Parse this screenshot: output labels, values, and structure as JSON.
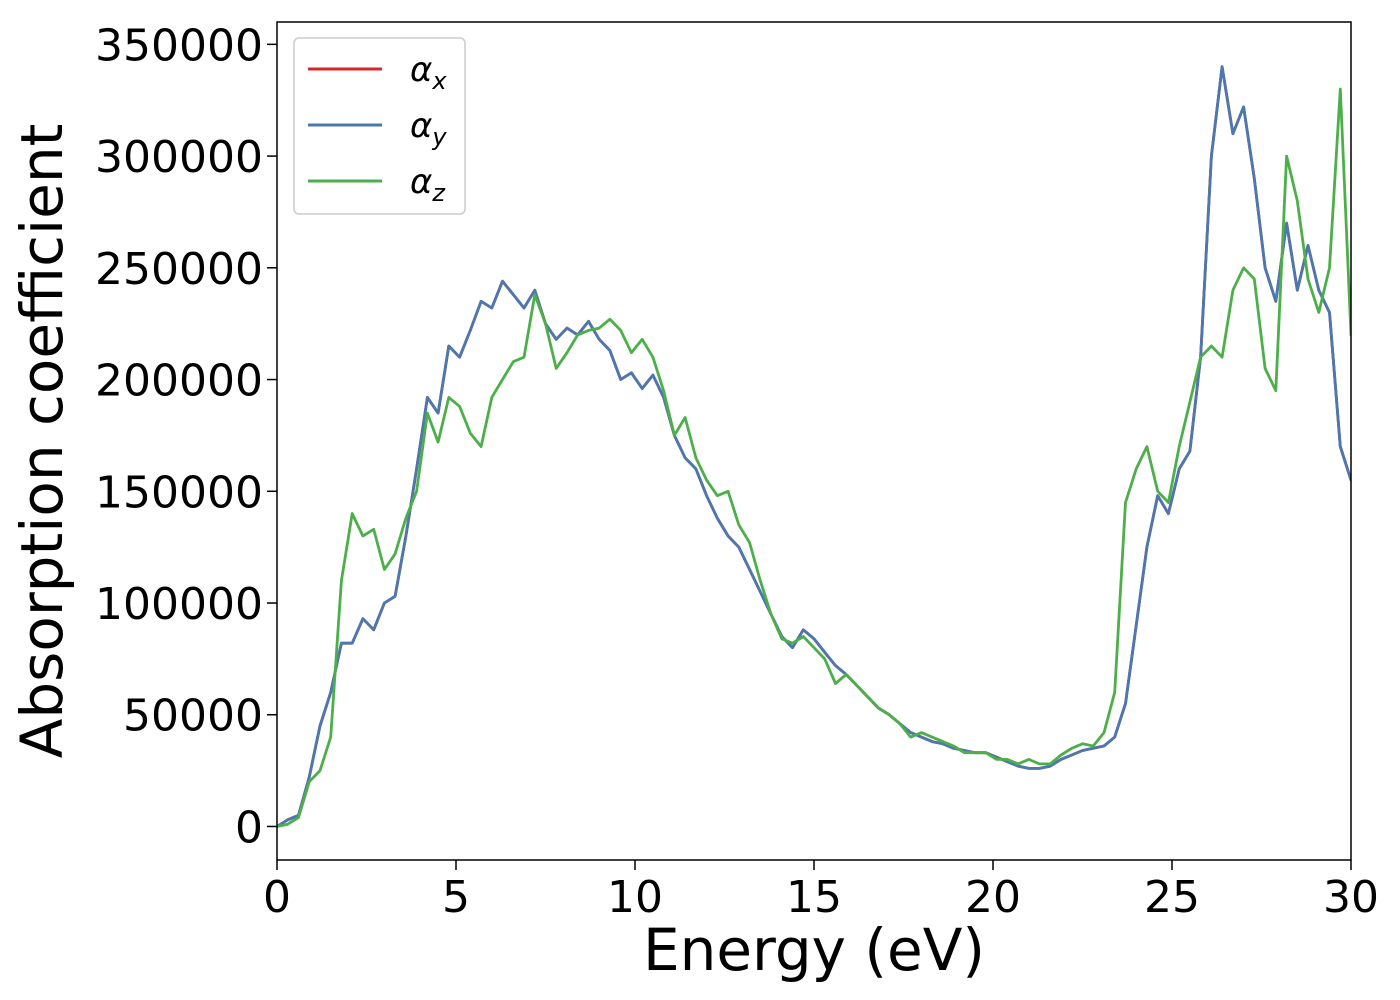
{
  "chart_data": {
    "type": "line",
    "title": "",
    "xlabel": "Energy (eV)",
    "ylabel": "Absorption coefficient",
    "xlim": [
      0,
      30
    ],
    "ylim": [
      -15000,
      360000
    ],
    "xticks": [
      0,
      5,
      10,
      15,
      20,
      25,
      30
    ],
    "yticks": [
      0,
      50000,
      100000,
      150000,
      200000,
      250000,
      300000,
      350000
    ],
    "grid": false,
    "legend_position": "top-left",
    "series": [
      {
        "name": "αx",
        "base": "α",
        "sub": "x",
        "color": "#d62728",
        "points": [
          [
            0,
            0
          ],
          [
            0.3,
            3000
          ],
          [
            0.6,
            5000
          ],
          [
            0.9,
            22000
          ],
          [
            1.2,
            45000
          ],
          [
            1.5,
            60000
          ],
          [
            1.8,
            82000
          ],
          [
            2.1,
            82000
          ],
          [
            2.4,
            93000
          ],
          [
            2.7,
            88000
          ],
          [
            3.0,
            100000
          ],
          [
            3.3,
            103000
          ],
          [
            3.6,
            130000
          ],
          [
            3.9,
            160000
          ],
          [
            4.2,
            192000
          ],
          [
            4.5,
            185000
          ],
          [
            4.8,
            215000
          ],
          [
            5.1,
            210000
          ],
          [
            5.4,
            222000
          ],
          [
            5.7,
            235000
          ],
          [
            6.0,
            232000
          ],
          [
            6.3,
            244000
          ],
          [
            6.6,
            238000
          ],
          [
            6.9,
            232000
          ],
          [
            7.2,
            240000
          ],
          [
            7.5,
            225000
          ],
          [
            7.8,
            218000
          ],
          [
            8.1,
            223000
          ],
          [
            8.4,
            220000
          ],
          [
            8.7,
            226000
          ],
          [
            9.0,
            218000
          ],
          [
            9.3,
            213000
          ],
          [
            9.6,
            200000
          ],
          [
            9.9,
            203000
          ],
          [
            10.2,
            196000
          ],
          [
            10.5,
            202000
          ],
          [
            10.8,
            192000
          ],
          [
            11.1,
            175000
          ],
          [
            11.4,
            165000
          ],
          [
            11.7,
            160000
          ],
          [
            12.0,
            148000
          ],
          [
            12.3,
            138000
          ],
          [
            12.6,
            130000
          ],
          [
            12.9,
            125000
          ],
          [
            13.2,
            115000
          ],
          [
            13.5,
            105000
          ],
          [
            13.8,
            95000
          ],
          [
            14.1,
            85000
          ],
          [
            14.4,
            80000
          ],
          [
            14.7,
            88000
          ],
          [
            15.0,
            84000
          ],
          [
            15.3,
            78000
          ],
          [
            15.6,
            72000
          ],
          [
            15.9,
            68000
          ],
          [
            16.2,
            63000
          ],
          [
            16.5,
            58000
          ],
          [
            16.8,
            53000
          ],
          [
            17.1,
            50000
          ],
          [
            17.4,
            46000
          ],
          [
            17.7,
            42000
          ],
          [
            18.0,
            40000
          ],
          [
            18.3,
            38000
          ],
          [
            18.6,
            37000
          ],
          [
            18.9,
            35000
          ],
          [
            19.2,
            34000
          ],
          [
            19.5,
            33000
          ],
          [
            19.8,
            33000
          ],
          [
            20.1,
            31000
          ],
          [
            20.4,
            29000
          ],
          [
            20.7,
            27000
          ],
          [
            21.0,
            26000
          ],
          [
            21.3,
            26000
          ],
          [
            21.6,
            27000
          ],
          [
            21.9,
            30000
          ],
          [
            22.2,
            32000
          ],
          [
            22.5,
            34000
          ],
          [
            22.8,
            35000
          ],
          [
            23.1,
            36000
          ],
          [
            23.4,
            40000
          ],
          [
            23.7,
            55000
          ],
          [
            24.0,
            90000
          ],
          [
            24.3,
            125000
          ],
          [
            24.6,
            148000
          ],
          [
            24.9,
            140000
          ],
          [
            25.2,
            160000
          ],
          [
            25.5,
            168000
          ],
          [
            25.8,
            210000
          ],
          [
            26.1,
            300000
          ],
          [
            26.4,
            340000
          ],
          [
            26.7,
            310000
          ],
          [
            27.0,
            322000
          ],
          [
            27.3,
            290000
          ],
          [
            27.6,
            250000
          ],
          [
            27.9,
            235000
          ],
          [
            28.2,
            270000
          ],
          [
            28.5,
            240000
          ],
          [
            28.8,
            260000
          ],
          [
            29.1,
            240000
          ],
          [
            29.4,
            230000
          ],
          [
            29.7,
            170000
          ],
          [
            30.0,
            155000
          ]
        ]
      },
      {
        "name": "αy",
        "base": "α",
        "sub": "y",
        "color": "#4a78b1",
        "points": [
          [
            0,
            0
          ],
          [
            0.3,
            3000
          ],
          [
            0.6,
            5000
          ],
          [
            0.9,
            22000
          ],
          [
            1.2,
            45000
          ],
          [
            1.5,
            60000
          ],
          [
            1.8,
            82000
          ],
          [
            2.1,
            82000
          ],
          [
            2.4,
            93000
          ],
          [
            2.7,
            88000
          ],
          [
            3.0,
            100000
          ],
          [
            3.3,
            103000
          ],
          [
            3.6,
            130000
          ],
          [
            3.9,
            160000
          ],
          [
            4.2,
            192000
          ],
          [
            4.5,
            185000
          ],
          [
            4.8,
            215000
          ],
          [
            5.1,
            210000
          ],
          [
            5.4,
            222000
          ],
          [
            5.7,
            235000
          ],
          [
            6.0,
            232000
          ],
          [
            6.3,
            244000
          ],
          [
            6.6,
            238000
          ],
          [
            6.9,
            232000
          ],
          [
            7.2,
            240000
          ],
          [
            7.5,
            225000
          ],
          [
            7.8,
            218000
          ],
          [
            8.1,
            223000
          ],
          [
            8.4,
            220000
          ],
          [
            8.7,
            226000
          ],
          [
            9.0,
            218000
          ],
          [
            9.3,
            213000
          ],
          [
            9.6,
            200000
          ],
          [
            9.9,
            203000
          ],
          [
            10.2,
            196000
          ],
          [
            10.5,
            202000
          ],
          [
            10.8,
            192000
          ],
          [
            11.1,
            175000
          ],
          [
            11.4,
            165000
          ],
          [
            11.7,
            160000
          ],
          [
            12.0,
            148000
          ],
          [
            12.3,
            138000
          ],
          [
            12.6,
            130000
          ],
          [
            12.9,
            125000
          ],
          [
            13.2,
            115000
          ],
          [
            13.5,
            105000
          ],
          [
            13.8,
            95000
          ],
          [
            14.1,
            85000
          ],
          [
            14.4,
            80000
          ],
          [
            14.7,
            88000
          ],
          [
            15.0,
            84000
          ],
          [
            15.3,
            78000
          ],
          [
            15.6,
            72000
          ],
          [
            15.9,
            68000
          ],
          [
            16.2,
            63000
          ],
          [
            16.5,
            58000
          ],
          [
            16.8,
            53000
          ],
          [
            17.1,
            50000
          ],
          [
            17.4,
            46000
          ],
          [
            17.7,
            42000
          ],
          [
            18.0,
            40000
          ],
          [
            18.3,
            38000
          ],
          [
            18.6,
            37000
          ],
          [
            18.9,
            35000
          ],
          [
            19.2,
            34000
          ],
          [
            19.5,
            33000
          ],
          [
            19.8,
            33000
          ],
          [
            20.1,
            31000
          ],
          [
            20.4,
            29000
          ],
          [
            20.7,
            27000
          ],
          [
            21.0,
            26000
          ],
          [
            21.3,
            26000
          ],
          [
            21.6,
            27000
          ],
          [
            21.9,
            30000
          ],
          [
            22.2,
            32000
          ],
          [
            22.5,
            34000
          ],
          [
            22.8,
            35000
          ],
          [
            23.1,
            36000
          ],
          [
            23.4,
            40000
          ],
          [
            23.7,
            55000
          ],
          [
            24.0,
            90000
          ],
          [
            24.3,
            125000
          ],
          [
            24.6,
            148000
          ],
          [
            24.9,
            140000
          ],
          [
            25.2,
            160000
          ],
          [
            25.5,
            168000
          ],
          [
            25.8,
            210000
          ],
          [
            26.1,
            300000
          ],
          [
            26.4,
            340000
          ],
          [
            26.7,
            310000
          ],
          [
            27.0,
            322000
          ],
          [
            27.3,
            290000
          ],
          [
            27.6,
            250000
          ],
          [
            27.9,
            235000
          ],
          [
            28.2,
            270000
          ],
          [
            28.5,
            240000
          ],
          [
            28.8,
            260000
          ],
          [
            29.1,
            240000
          ],
          [
            29.4,
            230000
          ],
          [
            29.7,
            170000
          ],
          [
            30.0,
            155000
          ]
        ]
      },
      {
        "name": "αz",
        "base": "α",
        "sub": "z",
        "color": "#4daf4a",
        "points": [
          [
            0,
            0
          ],
          [
            0.3,
            1000
          ],
          [
            0.6,
            4000
          ],
          [
            0.9,
            20000
          ],
          [
            1.2,
            25000
          ],
          [
            1.5,
            40000
          ],
          [
            1.8,
            110000
          ],
          [
            2.1,
            140000
          ],
          [
            2.4,
            130000
          ],
          [
            2.7,
            133000
          ],
          [
            3.0,
            115000
          ],
          [
            3.3,
            122000
          ],
          [
            3.6,
            138000
          ],
          [
            3.9,
            150000
          ],
          [
            4.2,
            185000
          ],
          [
            4.5,
            172000
          ],
          [
            4.8,
            192000
          ],
          [
            5.1,
            188000
          ],
          [
            5.4,
            176000
          ],
          [
            5.7,
            170000
          ],
          [
            6.0,
            192000
          ],
          [
            6.3,
            200000
          ],
          [
            6.6,
            208000
          ],
          [
            6.9,
            210000
          ],
          [
            7.2,
            238000
          ],
          [
            7.5,
            225000
          ],
          [
            7.8,
            205000
          ],
          [
            8.1,
            212000
          ],
          [
            8.4,
            220000
          ],
          [
            8.7,
            222000
          ],
          [
            9.0,
            223000
          ],
          [
            9.3,
            227000
          ],
          [
            9.6,
            222000
          ],
          [
            9.9,
            212000
          ],
          [
            10.2,
            218000
          ],
          [
            10.5,
            210000
          ],
          [
            10.8,
            195000
          ],
          [
            11.1,
            175000
          ],
          [
            11.4,
            183000
          ],
          [
            11.7,
            165000
          ],
          [
            12.0,
            155000
          ],
          [
            12.3,
            148000
          ],
          [
            12.6,
            150000
          ],
          [
            12.9,
            135000
          ],
          [
            13.2,
            127000
          ],
          [
            13.5,
            110000
          ],
          [
            13.8,
            95000
          ],
          [
            14.1,
            84000
          ],
          [
            14.4,
            82000
          ],
          [
            14.7,
            85000
          ],
          [
            15.0,
            80000
          ],
          [
            15.3,
            75000
          ],
          [
            15.6,
            64000
          ],
          [
            15.9,
            68000
          ],
          [
            16.2,
            63000
          ],
          [
            16.5,
            58000
          ],
          [
            16.8,
            53000
          ],
          [
            17.1,
            50000
          ],
          [
            17.4,
            46000
          ],
          [
            17.7,
            40000
          ],
          [
            18.0,
            42000
          ],
          [
            18.3,
            40000
          ],
          [
            18.6,
            38000
          ],
          [
            18.9,
            36000
          ],
          [
            19.2,
            33000
          ],
          [
            19.5,
            33000
          ],
          [
            19.8,
            33000
          ],
          [
            20.1,
            30000
          ],
          [
            20.4,
            30000
          ],
          [
            20.7,
            28000
          ],
          [
            21.0,
            30000
          ],
          [
            21.3,
            28000
          ],
          [
            21.6,
            28000
          ],
          [
            21.9,
            32000
          ],
          [
            22.2,
            35000
          ],
          [
            22.5,
            37000
          ],
          [
            22.8,
            36000
          ],
          [
            23.1,
            42000
          ],
          [
            23.4,
            60000
          ],
          [
            23.7,
            145000
          ],
          [
            24.0,
            160000
          ],
          [
            24.3,
            170000
          ],
          [
            24.6,
            150000
          ],
          [
            24.9,
            145000
          ],
          [
            25.2,
            170000
          ],
          [
            25.5,
            190000
          ],
          [
            25.8,
            210000
          ],
          [
            26.1,
            215000
          ],
          [
            26.4,
            210000
          ],
          [
            26.7,
            240000
          ],
          [
            27.0,
            250000
          ],
          [
            27.3,
            245000
          ],
          [
            27.6,
            205000
          ],
          [
            27.9,
            195000
          ],
          [
            28.2,
            300000
          ],
          [
            28.5,
            280000
          ],
          [
            28.8,
            245000
          ],
          [
            29.1,
            230000
          ],
          [
            29.4,
            250000
          ],
          [
            29.7,
            330000
          ],
          [
            30.0,
            220000
          ]
        ]
      }
    ]
  }
}
